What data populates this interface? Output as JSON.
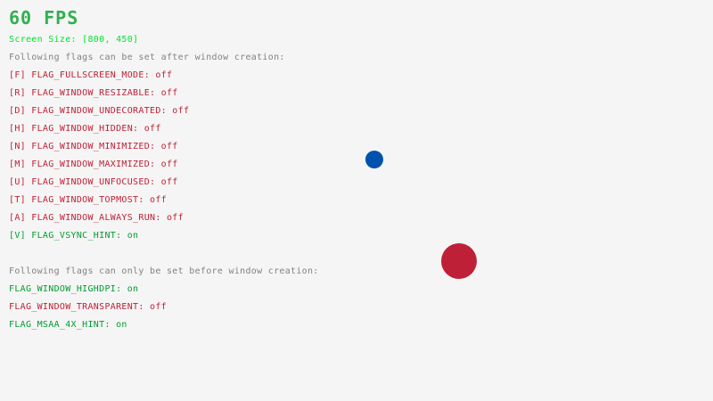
{
  "fps": "60 FPS",
  "screen_size": "Screen Size: [800, 450]",
  "colors": {
    "on": "#009e2f",
    "off": "#be2137",
    "gray": "#828282",
    "green": "#00e430",
    "background": "#f5f5f5",
    "ball_blue": "#0052ac",
    "ball_red": "#be2137"
  },
  "after_header": "Following flags can be set after window creation:",
  "after_flags": [
    {
      "label": "[F] FLAG_FULLSCREEN_MODE: ",
      "state": "off"
    },
    {
      "label": "[R] FLAG_WINDOW_RESIZABLE: ",
      "state": "off"
    },
    {
      "label": "[D] FLAG_WINDOW_UNDECORATED: ",
      "state": "off"
    },
    {
      "label": "[H] FLAG_WINDOW_HIDDEN: ",
      "state": "off"
    },
    {
      "label": "[N] FLAG_WINDOW_MINIMIZED: ",
      "state": "off"
    },
    {
      "label": "[M] FLAG_WINDOW_MAXIMIZED: ",
      "state": "off"
    },
    {
      "label": "[U] FLAG_WINDOW_UNFOCUSED: ",
      "state": "off"
    },
    {
      "label": "[T] FLAG_WINDOW_TOPMOST: ",
      "state": "off"
    },
    {
      "label": "[A] FLAG_WINDOW_ALWAYS_RUN: ",
      "state": "off"
    },
    {
      "label": "[V] FLAG_VSYNC_HINT: ",
      "state": "on"
    }
  ],
  "before_header": "Following flags can only be set before window creation:",
  "before_flags": [
    {
      "label": "FLAG_WINDOW_HIGHDPI: ",
      "state": "on"
    },
    {
      "label": "FLAG_WINDOW_TRANSPARENT: ",
      "state": "off"
    },
    {
      "label": "FLAG_MSAA_4X_HINT: ",
      "state": "on"
    }
  ]
}
